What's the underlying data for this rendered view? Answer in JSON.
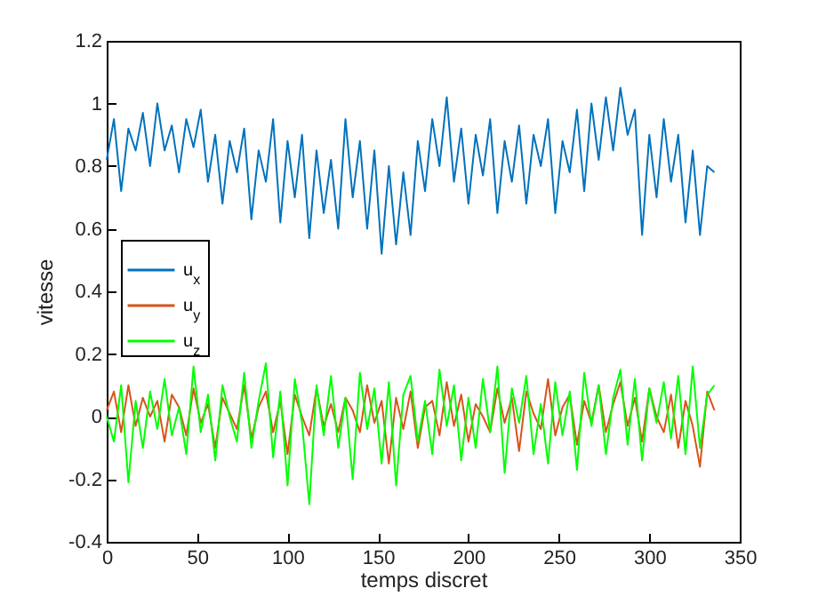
{
  "chart_data": {
    "type": "line",
    "xlabel": "temps discret",
    "ylabel": "vitesse",
    "x": [
      0,
      4,
      8,
      12,
      16,
      20,
      24,
      28,
      32,
      36,
      40,
      44,
      48,
      52,
      56,
      60,
      64,
      68,
      72,
      76,
      80,
      84,
      88,
      92,
      96,
      100,
      104,
      108,
      112,
      116,
      120,
      124,
      128,
      132,
      136,
      140,
      144,
      148,
      152,
      156,
      160,
      164,
      168,
      172,
      176,
      180,
      184,
      188,
      192,
      196,
      200,
      204,
      208,
      212,
      216,
      220,
      224,
      228,
      232,
      236,
      240,
      244,
      248,
      252,
      256,
      260,
      264,
      268,
      272,
      276,
      280,
      284,
      288,
      292,
      296,
      300,
      304,
      308,
      312,
      316,
      320,
      324,
      328,
      332,
      336
    ],
    "series": [
      {
        "name": "u$_{x}$",
        "color": "#0072bd",
        "values": [
          0.82,
          0.95,
          0.72,
          0.92,
          0.85,
          0.97,
          0.8,
          1.0,
          0.85,
          0.93,
          0.78,
          0.95,
          0.86,
          0.98,
          0.75,
          0.9,
          0.68,
          0.88,
          0.78,
          0.92,
          0.63,
          0.85,
          0.75,
          0.95,
          0.62,
          0.88,
          0.7,
          0.9,
          0.57,
          0.85,
          0.65,
          0.82,
          0.6,
          0.95,
          0.7,
          0.88,
          0.6,
          0.85,
          0.52,
          0.8,
          0.55,
          0.78,
          0.58,
          0.88,
          0.72,
          0.95,
          0.8,
          1.02,
          0.75,
          0.92,
          0.68,
          0.9,
          0.77,
          0.95,
          0.65,
          0.88,
          0.75,
          0.93,
          0.68,
          0.9,
          0.8,
          0.95,
          0.65,
          0.88,
          0.78,
          0.98,
          0.72,
          1.0,
          0.82,
          1.02,
          0.85,
          1.05,
          0.9,
          0.98,
          0.58,
          0.9,
          0.7,
          0.95,
          0.75,
          0.9,
          0.62,
          0.85,
          0.58,
          0.8,
          0.78
        ]
      },
      {
        "name": "u$_{y}$",
        "color": "#d95319",
        "values": [
          0.02,
          0.08,
          -0.05,
          0.1,
          -0.03,
          0.06,
          0.0,
          0.05,
          -0.08,
          0.07,
          0.03,
          -0.06,
          0.09,
          -0.02,
          0.04,
          -0.1,
          0.06,
          0.01,
          -0.04,
          0.1,
          -0.07,
          0.03,
          0.08,
          -0.05,
          0.05,
          -0.12,
          0.07,
          0.0,
          -0.06,
          0.09,
          -0.03,
          0.04,
          -0.05,
          0.06,
          0.02,
          -0.05,
          0.1,
          -0.02,
          0.05,
          -0.15,
          0.06,
          -0.04,
          0.08,
          -0.1,
          0.03,
          0.05,
          -0.06,
          0.11,
          -0.03,
          0.07,
          -0.08,
          0.04,
          0.0,
          -0.05,
          0.09,
          -0.02,
          0.06,
          -0.11,
          0.08,
          0.01,
          -0.04,
          0.12,
          -0.06,
          0.03,
          0.07,
          -0.09,
          0.05,
          -0.02,
          0.1,
          -0.05,
          0.04,
          0.11,
          -0.03,
          0.06,
          -0.08,
          0.09,
          0.0,
          -0.05,
          0.07,
          -0.1,
          0.05,
          -0.03,
          -0.16,
          0.08,
          0.02
        ]
      },
      {
        "name": "u$_{z}$",
        "color": "#00ff00",
        "values": [
          0.0,
          -0.08,
          0.1,
          -0.21,
          0.05,
          -0.1,
          0.08,
          -0.04,
          0.12,
          -0.06,
          0.03,
          -0.12,
          0.16,
          -0.05,
          0.07,
          -0.14,
          0.1,
          0.0,
          -0.08,
          0.14,
          -0.1,
          0.05,
          0.17,
          -0.13,
          0.08,
          -0.22,
          0.12,
          -0.02,
          -0.28,
          0.1,
          -0.06,
          0.13,
          -0.1,
          0.06,
          -0.2,
          0.14,
          -0.04,
          0.09,
          -0.15,
          0.11,
          -0.22,
          0.07,
          0.13,
          -0.08,
          0.05,
          -0.12,
          0.15,
          -0.03,
          0.1,
          -0.14,
          0.06,
          -0.1,
          0.12,
          -0.05,
          0.16,
          -0.18,
          0.09,
          -0.02,
          0.13,
          -0.12,
          0.04,
          -0.15,
          0.11,
          -0.06,
          0.08,
          -0.17,
          0.14,
          -0.03,
          0.1,
          -0.12,
          0.06,
          0.15,
          -0.09,
          0.12,
          -0.14,
          0.09,
          -0.02,
          0.11,
          -0.07,
          0.13,
          -0.12,
          0.16,
          -0.1,
          0.07,
          0.1
        ]
      }
    ],
    "xlim": [
      0,
      350
    ],
    "xticks": [
      0,
      50,
      100,
      150,
      200,
      250,
      300,
      350
    ],
    "ylim": [
      -0.4,
      1.2
    ],
    "yticks": [
      -0.4,
      -0.2,
      0,
      0.2,
      0.4,
      0.6,
      0.8,
      1,
      1.2
    ],
    "legend": "left",
    "grid": false,
    "line_style": "solid",
    "marker": "none"
  }
}
